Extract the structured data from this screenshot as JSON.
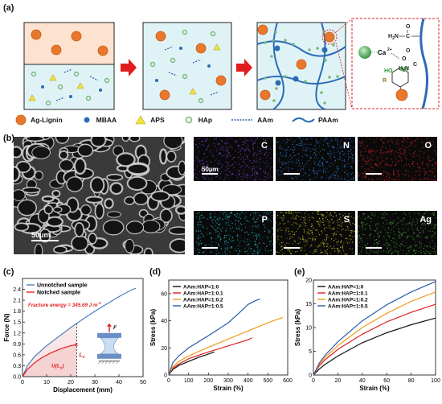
{
  "panel_labels": {
    "a": "(a)",
    "b": "(b)",
    "c": "(c)",
    "d": "(d)",
    "e": "(e)"
  },
  "schematic": {
    "legend": [
      {
        "name": "Ag-Lignin",
        "icon": "ag-lignin-particle-icon",
        "color": "#e9782d"
      },
      {
        "name": "MBAA",
        "icon": "mbaa-dot-icon",
        "color": "#2b6cb5"
      },
      {
        "name": "APS",
        "icon": "aps-triangle-icon",
        "color": "#f2e23a"
      },
      {
        "name": "HAp",
        "icon": "hap-ring-icon",
        "color": "#79b97a"
      },
      {
        "name": "AAm",
        "icon": "aam-dash-icon",
        "color": "#2b5fa8"
      },
      {
        "name": "PAAm",
        "icon": "paam-wave-icon",
        "color": "#2b6cb5"
      }
    ],
    "chem_labels": {
      "ca": "Ca",
      "ca_charge": "2+",
      "ho": "HO",
      "oh": "OH",
      "r": "R",
      "h2n": "H",
      "h2n_sub": "2",
      "h2n_n": "N",
      "c_label": "C",
      "o1": "O",
      "o2": "O",
      "h2n2": "H",
      "h2n2_sub": "2",
      "h2n2_n": "N",
      "c2": "C",
      "o3": "O"
    }
  },
  "sem": {
    "scale_main": "50μm",
    "scale_map": "50μm",
    "maps": [
      {
        "element": "C",
        "color": "#7a3fd1"
      },
      {
        "element": "N",
        "color": "#2a7de0"
      },
      {
        "element": "O",
        "color": "#e02424"
      },
      {
        "element": "P",
        "color": "#23b8c8"
      },
      {
        "element": "S",
        "color": "#d9d42a"
      },
      {
        "element": "Ag",
        "color": "#4caa3c"
      }
    ]
  },
  "chart_data": [
    {
      "type": "line",
      "panel": "(c)",
      "xlabel": "Displacement (mm)",
      "ylabel": "Force (N)",
      "xlim": [
        0,
        50
      ],
      "ylim": [
        0,
        2.7
      ],
      "xticks": [
        0,
        10,
        20,
        30,
        40,
        50
      ],
      "yticks": [
        0.0,
        0.3,
        0.6,
        0.9,
        1.2,
        1.5,
        1.8,
        2.1,
        2.4
      ],
      "legend": "top-left",
      "annotation": "Fracture energy = 345.69 J m",
      "annotation_sup": "-2",
      "lc_label": "L",
      "lc_sub": "c",
      "u_label": "U(L",
      "u_sub": "c",
      "u_close": ")",
      "force_label": "F",
      "series": [
        {
          "name": "Unnotched sample",
          "color": "#4a7fc1",
          "x": [
            0,
            2,
            5,
            10,
            15,
            20,
            25,
            30,
            35,
            40,
            45,
            47
          ],
          "y": [
            0,
            0.3,
            0.55,
            0.85,
            1.1,
            1.35,
            1.58,
            1.8,
            2.0,
            2.2,
            2.38,
            2.43
          ]
        },
        {
          "name": "Notched sample",
          "color": "#e02020",
          "x": [
            0,
            2,
            5,
            8,
            12,
            16,
            20,
            22.5
          ],
          "y": [
            0,
            0.2,
            0.38,
            0.52,
            0.66,
            0.77,
            0.85,
            0.88
          ]
        }
      ]
    },
    {
      "type": "line",
      "panel": "(d)",
      "xlabel": "Strain (%)",
      "ylabel": "Stress (kPa)",
      "xlim": [
        0,
        600
      ],
      "ylim": [
        0,
        70
      ],
      "xticks": [
        0,
        100,
        200,
        300,
        400,
        500,
        600
      ],
      "yticks": [
        0,
        20,
        40,
        60
      ],
      "legend": "top-left",
      "series": [
        {
          "name": "AAm:HAP=1:0",
          "color": "#111111",
          "x": [
            0,
            20,
            50,
            100,
            150,
            200,
            230
          ],
          "y": [
            0,
            4,
            7,
            10,
            13,
            15.5,
            17
          ]
        },
        {
          "name": "AAm:HAP=1:0.1",
          "color": "#e02020",
          "x": [
            0,
            20,
            50,
            100,
            200,
            300,
            400,
            420
          ],
          "y": [
            0,
            5,
            8,
            12,
            17,
            21.5,
            26,
            27.5
          ]
        },
        {
          "name": "AAm:HAP=1:0.2",
          "color": "#f09a1a",
          "x": [
            0,
            20,
            50,
            100,
            200,
            300,
            400,
            500,
            575
          ],
          "y": [
            0,
            6,
            10,
            14,
            20.5,
            26.5,
            32.5,
            38.5,
            42.5
          ]
        },
        {
          "name": "AAm:HAP=1:0.5",
          "color": "#2a5caa",
          "x": [
            0,
            20,
            50,
            100,
            200,
            300,
            350,
            400,
            440,
            460
          ],
          "y": [
            0,
            9,
            14,
            20,
            29,
            38.5,
            45,
            52,
            55,
            56
          ]
        }
      ]
    },
    {
      "type": "line",
      "panel": "(e)",
      "xlabel": "Strain (%)",
      "ylabel": "Stress (kPa)",
      "xlim": [
        0,
        100
      ],
      "ylim": [
        0,
        20
      ],
      "xticks": [
        0,
        20,
        40,
        60,
        80,
        100
      ],
      "yticks": [
        0,
        5,
        10,
        15,
        20
      ],
      "legend": "top-left",
      "series": [
        {
          "name": "AAm:HAP=1:0",
          "color": "#111111",
          "x": [
            0,
            5,
            10,
            20,
            40,
            60,
            80,
            100
          ],
          "y": [
            0,
            1.3,
            2.3,
            4,
            6.8,
            8.9,
            10.6,
            12
          ]
        },
        {
          "name": "AAm:HAP=1:0.1",
          "color": "#e02020",
          "x": [
            0,
            5,
            10,
            20,
            40,
            60,
            80,
            100
          ],
          "y": [
            0,
            2,
            3.3,
            5.4,
            8.6,
            11.2,
            13.2,
            14.9
          ]
        },
        {
          "name": "AAm:HAP=1:0.2",
          "color": "#f09a1a",
          "x": [
            0,
            5,
            10,
            20,
            40,
            60,
            80,
            100
          ],
          "y": [
            0,
            2.3,
            3.8,
            6.2,
            10,
            13,
            15.5,
            17.5
          ]
        },
        {
          "name": "AAm:HAP=1:0.5",
          "color": "#2a5caa",
          "x": [
            0,
            5,
            10,
            20,
            40,
            60,
            80,
            100
          ],
          "y": [
            0,
            2.6,
            4.3,
            7,
            11.4,
            14.8,
            17.5,
            19.7
          ]
        }
      ]
    }
  ]
}
